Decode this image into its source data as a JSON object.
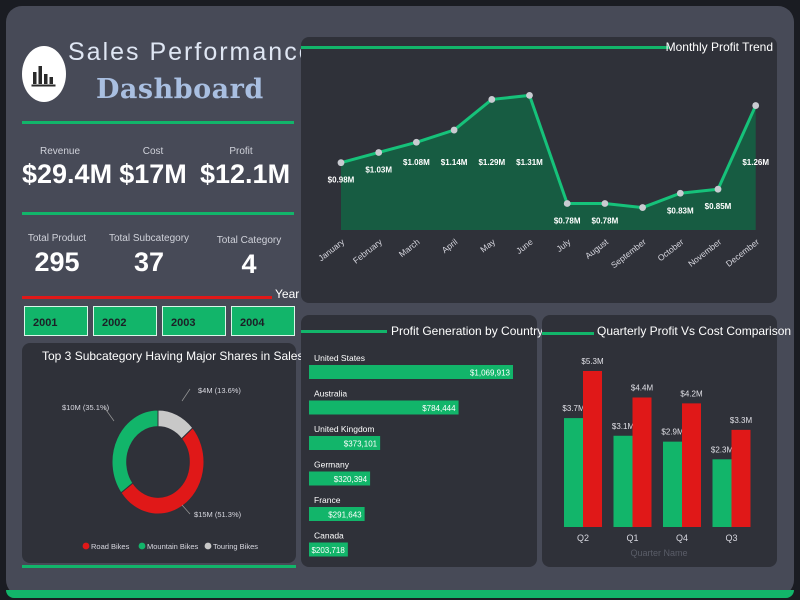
{
  "header": {
    "title_line1": "Sales Performance",
    "title_line2": "Dashboard"
  },
  "kpis": [
    {
      "label": "Revenue",
      "value": "$29.4M"
    },
    {
      "label": "Cost",
      "value": "$17M"
    },
    {
      "label": "Profit",
      "value": "$12.1M"
    }
  ],
  "counts": [
    {
      "label": "Total Product",
      "value": "295"
    },
    {
      "label": "Total Subcategory",
      "value": "37"
    },
    {
      "label": "Total Category",
      "value": "4"
    }
  ],
  "year_filter": {
    "label": "Year",
    "options": [
      "2001",
      "2002",
      "2003",
      "2004"
    ]
  },
  "colors": {
    "accent": "#12b56a",
    "red": "#e01818",
    "grey": "#c8c8c8",
    "panel": "#2f3139"
  },
  "chart_data": [
    {
      "type": "area",
      "title": "Monthly Profit Trend",
      "categories": [
        "January",
        "February",
        "March",
        "April",
        "May",
        "June",
        "July",
        "August",
        "September",
        "October",
        "November",
        "December"
      ],
      "values": [
        0.98,
        1.03,
        1.08,
        1.14,
        1.29,
        1.31,
        0.78,
        0.78,
        0.76,
        0.83,
        0.85,
        1.26
      ],
      "labels": [
        "$0.98M",
        "$1.03M",
        "$1.08M",
        "$1.14M",
        "$1.29M",
        "$1.31M",
        "$0.78M",
        "$0.78M",
        "",
        "$0.83M",
        "$0.85M",
        "$1.26M"
      ],
      "ylim": [
        0.65,
        1.4
      ]
    },
    {
      "type": "pie",
      "title": "Top 3 Subcategory Having Major Shares in Sales",
      "slices": [
        {
          "name": "Road Bikes",
          "value": 51.3,
          "label": "$15M (51.3%)",
          "color": "#e01818"
        },
        {
          "name": "Mountain Bikes",
          "value": 35.1,
          "label": "$10M (35.1%)",
          "color": "#12b56a"
        },
        {
          "name": "Touring Bikes",
          "value": 13.6,
          "label": "$4M (13.6%)",
          "color": "#c8c8c8"
        }
      ],
      "legend": "bottom"
    },
    {
      "type": "bar",
      "title": "Profit Generation by Country",
      "categories": [
        "United States",
        "Australia",
        "United Kingdom",
        "Germany",
        "France",
        "Canada"
      ],
      "values": [
        1069913,
        784444,
        373101,
        320394,
        291643,
        203718
      ],
      "labels": [
        "$1,069,913",
        "$784,444",
        "$373,101",
        "$320,394",
        "$291,643",
        "$203,718"
      ]
    },
    {
      "type": "bar",
      "title": "Quarterly Profit Vs Cost Comparison",
      "xlabel": "Quarter Name",
      "categories": [
        "Q2",
        "Q1",
        "Q4",
        "Q3"
      ],
      "series": [
        {
          "values": [
            3.7,
            3.1,
            2.9,
            2.3
          ],
          "labels": [
            "$3.7M",
            "$3.1M",
            "$2.9M",
            "$2.3M"
          ],
          "color": "#12b56a"
        },
        {
          "values": [
            5.3,
            4.4,
            4.2,
            3.3
          ],
          "labels": [
            "$5.3M",
            "$4.4M",
            "$4.2M",
            "$3.3M"
          ],
          "color": "#e01818"
        }
      ],
      "ylim": [
        0,
        5.3
      ]
    }
  ]
}
